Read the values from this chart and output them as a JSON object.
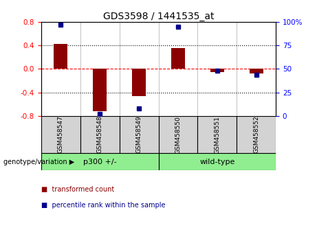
{
  "title": "GDS3598 / 1441535_at",
  "samples": [
    "GSM458547",
    "GSM458548",
    "GSM458549",
    "GSM458550",
    "GSM458551",
    "GSM458552"
  ],
  "transformed_count": [
    0.42,
    -0.72,
    -0.47,
    0.35,
    -0.05,
    -0.08
  ],
  "percentile_rank": [
    97,
    2,
    8,
    95,
    48,
    44
  ],
  "groups": [
    {
      "label": "p300 +/-",
      "start": 0,
      "end": 2,
      "color": "#90EE90"
    },
    {
      "label": "wild-type",
      "start": 3,
      "end": 5,
      "color": "#90EE90"
    }
  ],
  "bar_color": "#8B0000",
  "dot_color": "#00008B",
  "ylim_left": [
    -0.8,
    0.8
  ],
  "ylim_right": [
    0,
    100
  ],
  "yticks_left": [
    -0.8,
    -0.4,
    0.0,
    0.4,
    0.8
  ],
  "yticks_right": [
    0,
    25,
    50,
    75,
    100
  ],
  "ytick_labels_right": [
    "0",
    "25",
    "50",
    "75",
    "100%"
  ],
  "hline_y": 0.0,
  "dotted_lines": [
    -0.4,
    0.4
  ],
  "background_color": "#ffffff",
  "bar_width": 0.35,
  "group_label": "genotype/variation",
  "legend_items": [
    {
      "label": "transformed count",
      "color": "#8B0000"
    },
    {
      "label": "percentile rank within the sample",
      "color": "#00008B"
    }
  ]
}
